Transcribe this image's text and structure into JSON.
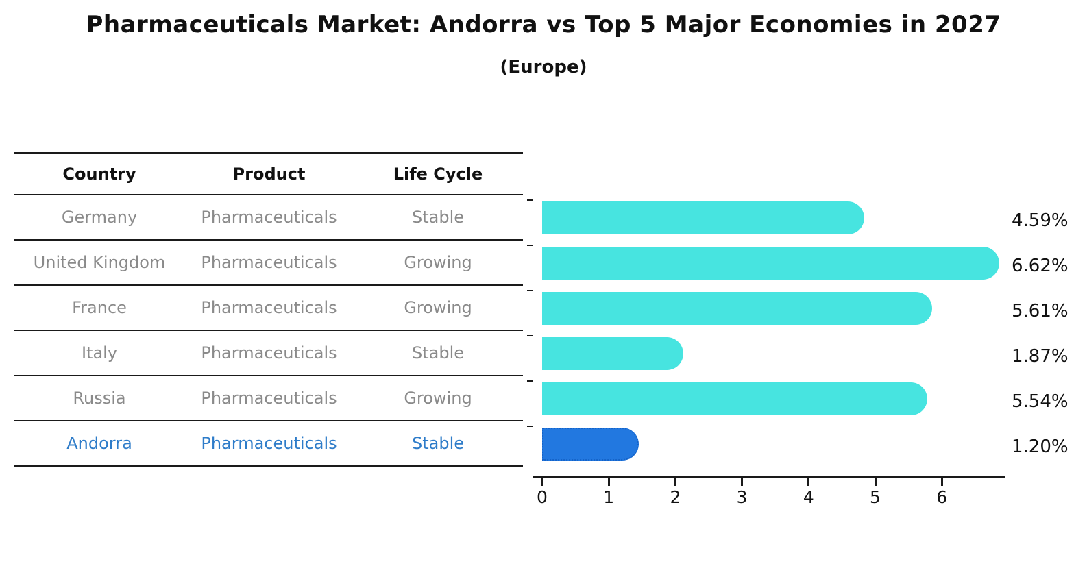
{
  "title": "Pharmaceuticals Market: Andorra vs Top 5 Major Economies in 2027",
  "subtitle": "(Europe)",
  "table": {
    "headers": [
      "Country",
      "Product",
      "Life Cycle"
    ],
    "rows": [
      {
        "country": "Germany",
        "product": "Pharmaceuticals",
        "life_cycle": "Stable",
        "value_label": "4.59%",
        "highlighted": false
      },
      {
        "country": "United Kingdom",
        "product": "Pharmaceuticals",
        "life_cycle": "Growing",
        "value_label": "6.62%",
        "highlighted": false
      },
      {
        "country": "France",
        "product": "Pharmaceuticals",
        "life_cycle": "Growing",
        "value_label": "5.61%",
        "highlighted": false
      },
      {
        "country": "Italy",
        "product": "Pharmaceuticals",
        "life_cycle": "Stable",
        "value_label": "1.87%",
        "highlighted": false
      },
      {
        "country": "Russia",
        "product": "Pharmaceuticals",
        "life_cycle": "Growing",
        "value_label": "5.54%",
        "highlighted": false
      },
      {
        "country": "Andorra",
        "product": "Pharmaceuticals",
        "life_cycle": "Stable",
        "value_label": "1.20%",
        "highlighted": true
      }
    ]
  },
  "chart_data": {
    "type": "bar",
    "orientation": "horizontal",
    "title": "Pharmaceuticals Market: Andorra vs Top 5 Major Economies in 2027",
    "subtitle": "(Europe)",
    "categories": [
      "Germany",
      "United Kingdom",
      "France",
      "Italy",
      "Russia",
      "Andorra"
    ],
    "values": [
      4.59,
      6.62,
      5.61,
      1.87,
      5.54,
      1.2
    ],
    "value_labels": [
      "4.59%",
      "6.62%",
      "5.61%",
      "1.87%",
      "5.54%",
      "1.20%"
    ],
    "xlim": [
      0,
      7
    ],
    "x_ticks": [
      0,
      1,
      2,
      3,
      4,
      5,
      6
    ],
    "grid": false,
    "legend": false,
    "highlight_category": "Andorra"
  },
  "colors": {
    "bar": "#47E4E0",
    "highlight_bar": "#2278E0",
    "highlight_bar_border": "#1563C8",
    "highlight_text": "#2E7CC9",
    "row_text": "#8A8A8A",
    "heading_text": "#111111",
    "axis": "#1A1A1A"
  }
}
